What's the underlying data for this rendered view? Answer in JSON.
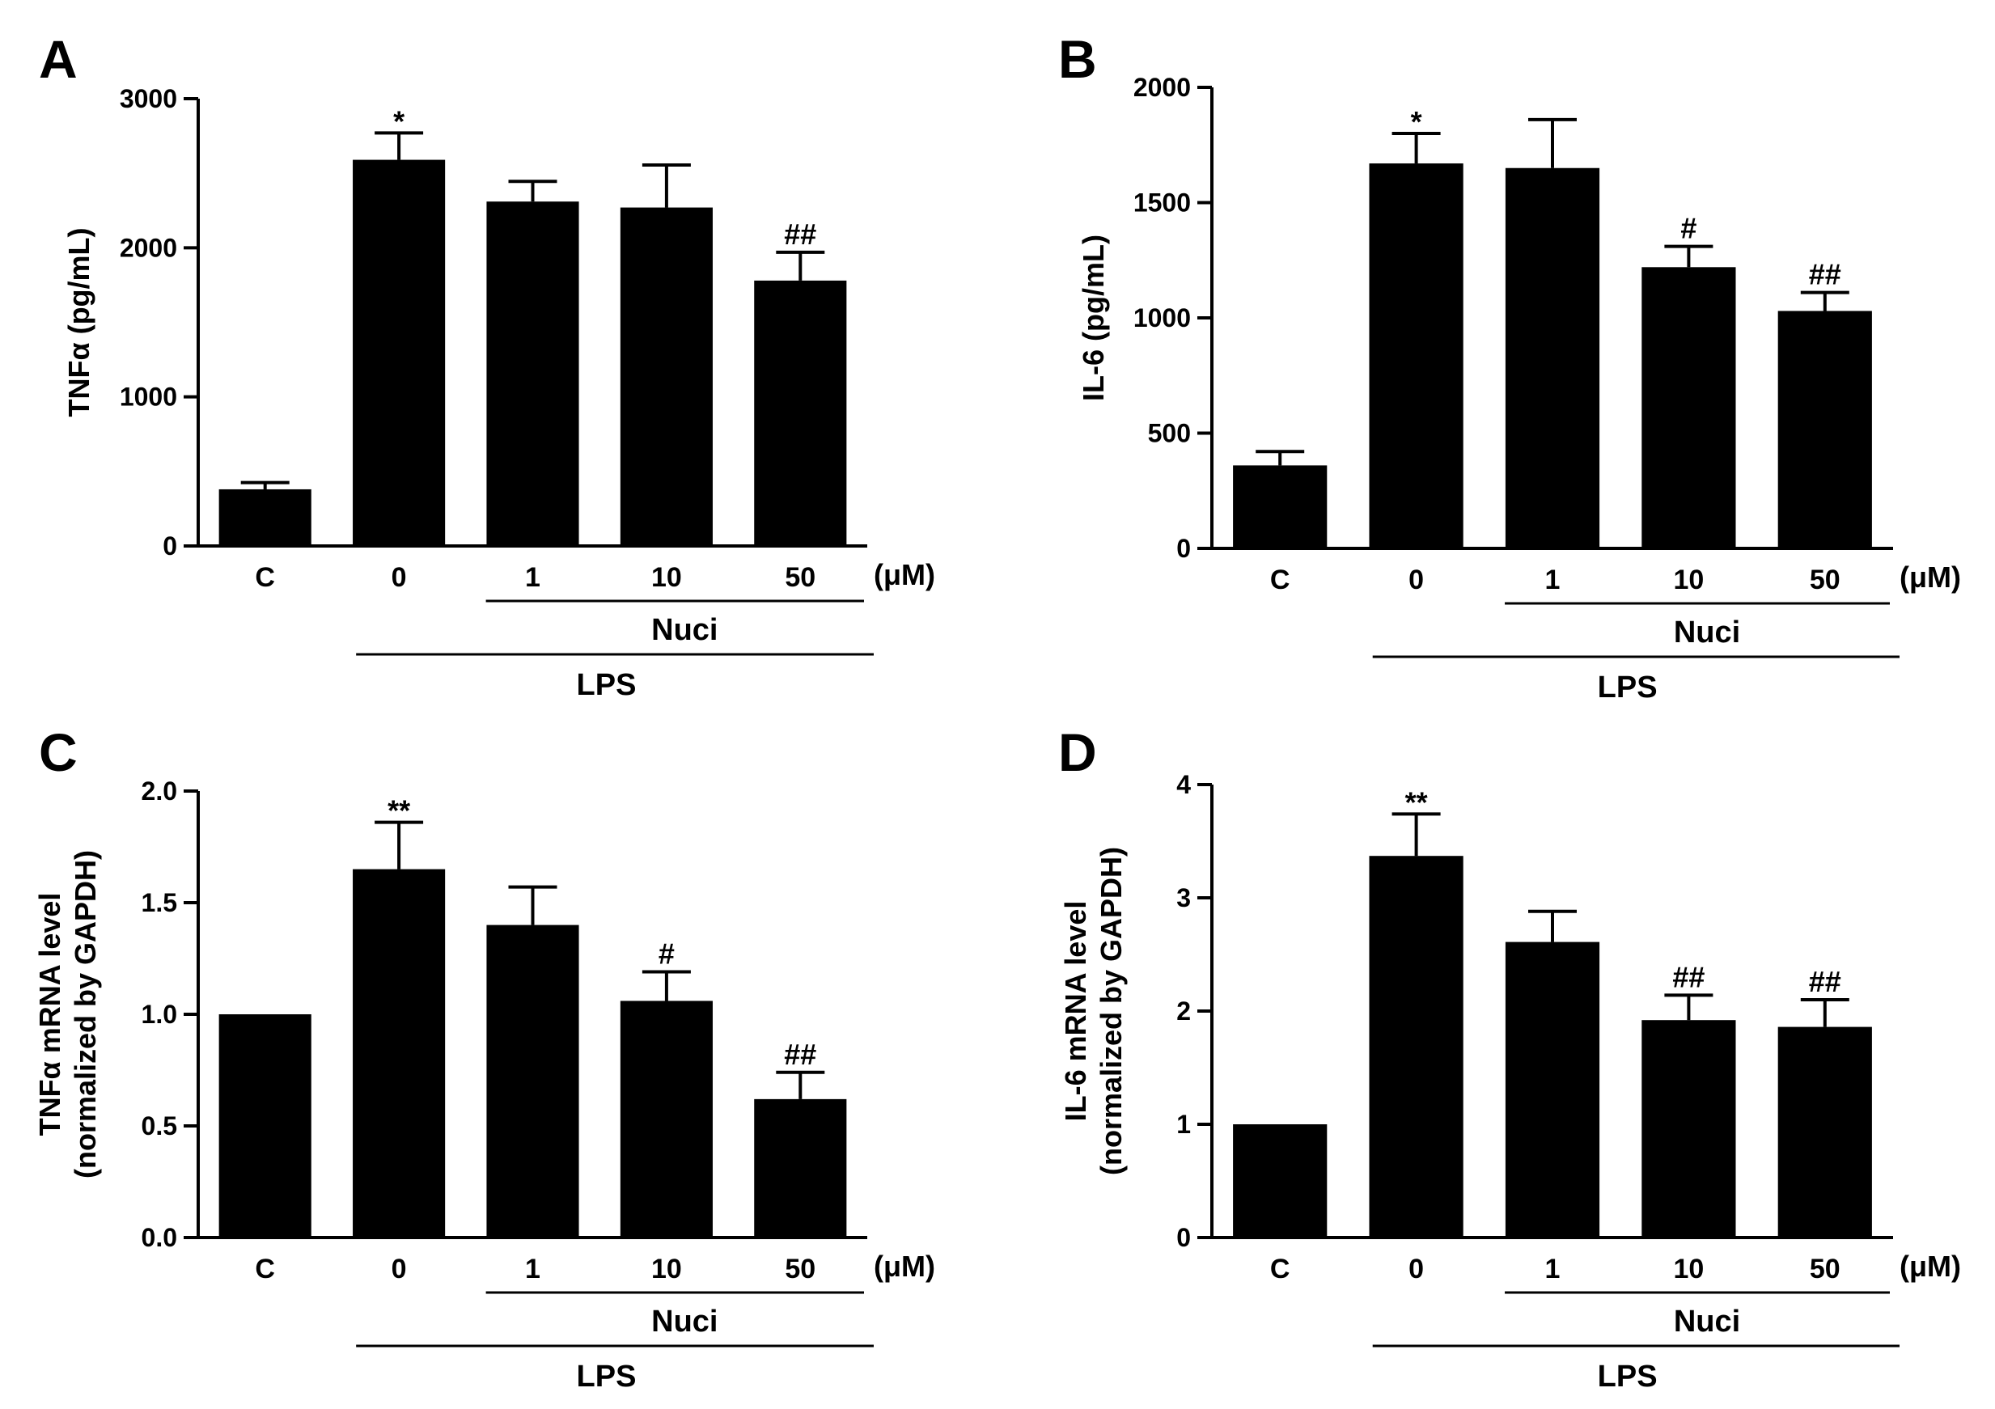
{
  "chart_data": [
    {
      "panel": "A",
      "type": "bar",
      "ylabel": [
        "TNFα (pg/mL)"
      ],
      "ylim": [
        0,
        3000
      ],
      "yticks": [
        0,
        1000,
        2000,
        3000
      ],
      "tick_labels": [
        "0",
        "1000",
        "2000",
        "3000"
      ],
      "categories": [
        "C",
        "0",
        "1",
        "10",
        "50"
      ],
      "unit": "(μM)",
      "values": [
        380,
        2590,
        2310,
        2270,
        1780
      ],
      "errors": [
        45,
        180,
        135,
        285,
        190
      ],
      "significance": [
        "",
        "*",
        "",
        "",
        "##"
      ],
      "groups": {
        "nuci": "Nuci",
        "lps": "LPS"
      }
    },
    {
      "panel": "B",
      "type": "bar",
      "ylabel": [
        "IL-6 (pg/mL)"
      ],
      "ylim": [
        0,
        2000
      ],
      "yticks": [
        0,
        500,
        1000,
        1500,
        2000
      ],
      "tick_labels": [
        "0",
        "500",
        "1000",
        "1500",
        "2000"
      ],
      "categories": [
        "C",
        "0",
        "1",
        "10",
        "50"
      ],
      "unit": "(μM)",
      "values": [
        360,
        1670,
        1650,
        1220,
        1030
      ],
      "errors": [
        60,
        130,
        210,
        90,
        80
      ],
      "significance": [
        "",
        "*",
        "",
        "#",
        "##"
      ],
      "groups": {
        "nuci": "Nuci",
        "lps": "LPS"
      }
    },
    {
      "panel": "C",
      "type": "bar",
      "ylabel": [
        "TNFα mRNA level",
        "(normalized by GAPDH)"
      ],
      "ylim": [
        0,
        2.0
      ],
      "yticks": [
        0,
        0.5,
        1.0,
        1.5,
        2.0
      ],
      "tick_labels": [
        "0.0",
        "0.5",
        "1.0",
        "1.5",
        "2.0"
      ],
      "categories": [
        "C",
        "0",
        "1",
        "10",
        "50"
      ],
      "unit": "(μM)",
      "values": [
        1.0,
        1.65,
        1.4,
        1.06,
        0.62
      ],
      "errors": [
        0,
        0.21,
        0.17,
        0.13,
        0.12
      ],
      "significance": [
        "",
        "**",
        "",
        "#",
        "##"
      ],
      "groups": {
        "nuci": "Nuci",
        "lps": "LPS"
      }
    },
    {
      "panel": "D",
      "type": "bar",
      "ylabel": [
        "IL-6 mRNA level",
        "(normalized by GAPDH)"
      ],
      "ylim": [
        0,
        4
      ],
      "yticks": [
        0,
        1,
        2,
        3,
        4
      ],
      "tick_labels": [
        "0",
        "1",
        "2",
        "3",
        "4"
      ],
      "categories": [
        "C",
        "0",
        "1",
        "10",
        "50"
      ],
      "unit": "(μM)",
      "values": [
        1.0,
        3.37,
        2.61,
        1.92,
        1.86
      ],
      "errors": [
        0,
        0.37,
        0.27,
        0.22,
        0.24
      ],
      "significance": [
        "",
        "**",
        "",
        "##",
        "##"
      ],
      "groups": {
        "nuci": "Nuci",
        "lps": "LPS"
      }
    }
  ]
}
